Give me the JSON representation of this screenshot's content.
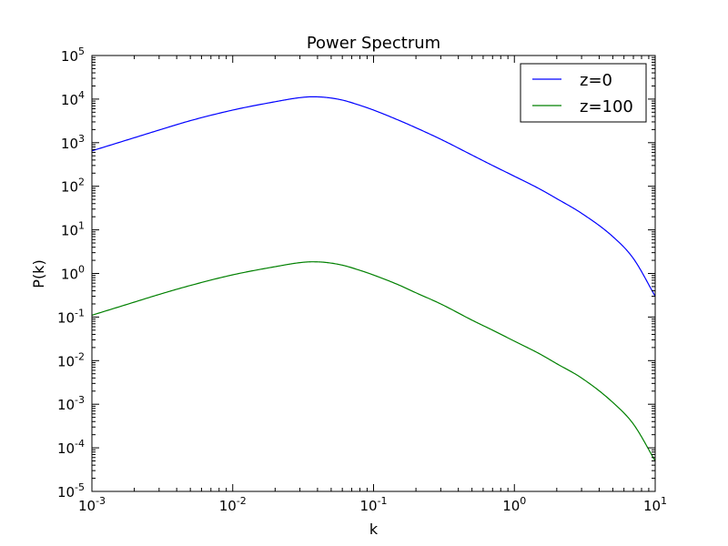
{
  "chart_data": {
    "type": "line",
    "title": "Power Spectrum",
    "xlabel": "k",
    "ylabel": "P(k)",
    "xscale": "log",
    "yscale": "log",
    "xlim": [
      0.001,
      10
    ],
    "ylim": [
      1e-05,
      100000
    ],
    "grid": false,
    "legend_position": "top-right",
    "x_ticks": [
      {
        "value": 0.001,
        "base": "10",
        "exp": "-3"
      },
      {
        "value": 0.01,
        "base": "10",
        "exp": "-2"
      },
      {
        "value": 0.1,
        "base": "10",
        "exp": "-1"
      },
      {
        "value": 1,
        "base": "10",
        "exp": "0"
      },
      {
        "value": 10,
        "base": "10",
        "exp": "1"
      }
    ],
    "y_ticks": [
      {
        "value": 1e-05,
        "base": "10",
        "exp": "-5"
      },
      {
        "value": 0.0001,
        "base": "10",
        "exp": "-4"
      },
      {
        "value": 0.001,
        "base": "10",
        "exp": "-3"
      },
      {
        "value": 0.01,
        "base": "10",
        "exp": "-2"
      },
      {
        "value": 0.1,
        "base": "10",
        "exp": "-1"
      },
      {
        "value": 1,
        "base": "10",
        "exp": "0"
      },
      {
        "value": 10,
        "base": "10",
        "exp": "1"
      },
      {
        "value": 100,
        "base": "10",
        "exp": "2"
      },
      {
        "value": 1000,
        "base": "10",
        "exp": "3"
      },
      {
        "value": 10000,
        "base": "10",
        "exp": "4"
      },
      {
        "value": 100000,
        "base": "10",
        "exp": "5"
      }
    ],
    "series": [
      {
        "name": "z=0",
        "color": "#0000ff",
        "points": [
          [
            0.001,
            650
          ],
          [
            0.002,
            1300
          ],
          [
            0.003,
            1950
          ],
          [
            0.005,
            3200
          ],
          [
            0.01,
            5600
          ],
          [
            0.02,
            8700
          ],
          [
            0.03,
            10800
          ],
          [
            0.0366,
            11300
          ],
          [
            0.045,
            11000
          ],
          [
            0.06,
            9500
          ],
          [
            0.08,
            7200
          ],
          [
            0.1,
            5600
          ],
          [
            0.15,
            3300
          ],
          [
            0.2,
            2200
          ],
          [
            0.3,
            1200
          ],
          [
            0.5,
            520
          ],
          [
            0.7,
            300
          ],
          [
            1,
            170
          ],
          [
            1.5,
            88
          ],
          [
            2,
            52
          ],
          [
            3,
            24
          ],
          [
            5,
            7
          ],
          [
            7,
            2.2
          ],
          [
            10,
            0.3
          ]
        ]
      },
      {
        "name": "z=100",
        "color": "#008000",
        "points": [
          [
            0.001,
            0.11
          ],
          [
            0.002,
            0.22
          ],
          [
            0.003,
            0.33
          ],
          [
            0.005,
            0.53
          ],
          [
            0.01,
            0.93
          ],
          [
            0.02,
            1.43
          ],
          [
            0.03,
            1.77
          ],
          [
            0.0366,
            1.85
          ],
          [
            0.045,
            1.8
          ],
          [
            0.06,
            1.55
          ],
          [
            0.08,
            1.18
          ],
          [
            0.1,
            0.92
          ],
          [
            0.15,
            0.55
          ],
          [
            0.2,
            0.36
          ],
          [
            0.3,
            0.2
          ],
          [
            0.5,
            0.085
          ],
          [
            0.7,
            0.05
          ],
          [
            1,
            0.028
          ],
          [
            1.5,
            0.0145
          ],
          [
            2,
            0.0085
          ],
          [
            3,
            0.004
          ],
          [
            5,
            0.0011
          ],
          [
            7,
            0.00035
          ],
          [
            10,
            5e-05
          ]
        ]
      }
    ]
  }
}
